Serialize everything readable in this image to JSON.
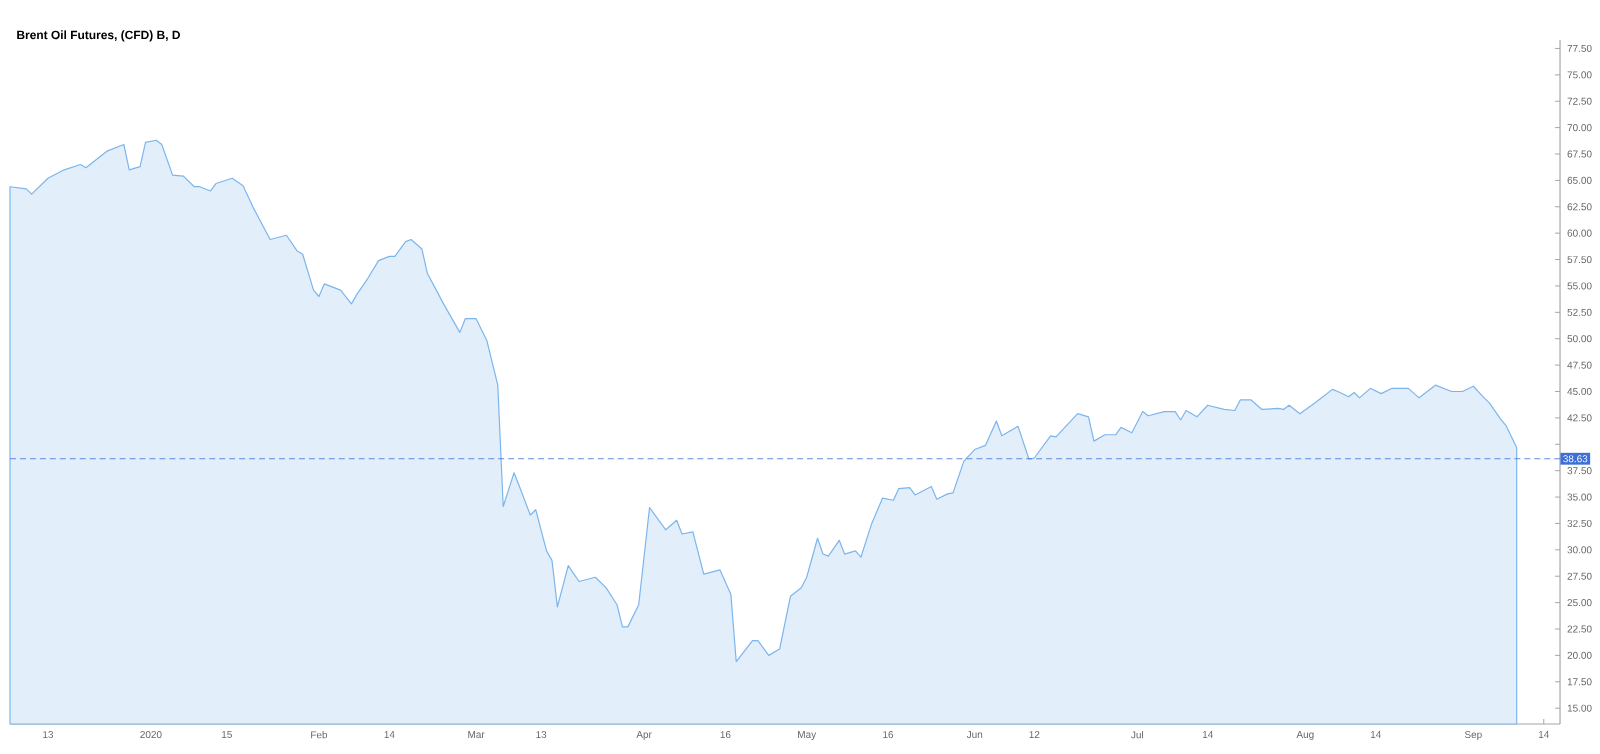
{
  "chart_data": {
    "type": "area",
    "title": "Brent Oil Futures, (CFD) B, D",
    "x": [
      "2019-12-06",
      "2019-12-09",
      "2019-12-10",
      "2019-12-13",
      "2019-12-16",
      "2019-12-19",
      "2019-12-20",
      "2019-12-24",
      "2019-12-27",
      "2019-12-28",
      "2019-12-30",
      "2019-12-31",
      "2020-01-02",
      "2020-01-03",
      "2020-01-05",
      "2020-01-07",
      "2020-01-09",
      "2020-01-10",
      "2020-01-12",
      "2020-01-13",
      "2020-01-16",
      "2020-01-18",
      "2020-01-20",
      "2020-01-23",
      "2020-01-26",
      "2020-01-28",
      "2020-01-29",
      "2020-01-31",
      "2020-02-01",
      "2020-02-02",
      "2020-02-05",
      "2020-02-07",
      "2020-02-08",
      "2020-02-10",
      "2020-02-12",
      "2020-02-14",
      "2020-02-15",
      "2020-02-17",
      "2020-02-18",
      "2020-02-20",
      "2020-02-21",
      "2020-02-24",
      "2020-02-27",
      "2020-02-28",
      "2020-03-01",
      "2020-03-03",
      "2020-03-05",
      "2020-03-06",
      "2020-03-08",
      "2020-03-09",
      "2020-03-11",
      "2020-03-12",
      "2020-03-14",
      "2020-03-15",
      "2020-03-16",
      "2020-03-18",
      "2020-03-20",
      "2020-03-23",
      "2020-03-25",
      "2020-03-27",
      "2020-03-28",
      "2020-03-29",
      "2020-03-31",
      "2020-04-02",
      "2020-04-05",
      "2020-04-07",
      "2020-04-08",
      "2020-04-10",
      "2020-04-12",
      "2020-04-15",
      "2020-04-17",
      "2020-04-18",
      "2020-04-21",
      "2020-04-22",
      "2020-04-24",
      "2020-04-26",
      "2020-04-28",
      "2020-04-30",
      "2020-05-01",
      "2020-05-03",
      "2020-05-04",
      "2020-05-05",
      "2020-05-07",
      "2020-05-08",
      "2020-05-10",
      "2020-05-11",
      "2020-05-13",
      "2020-05-15",
      "2020-05-17",
      "2020-05-18",
      "2020-05-20",
      "2020-05-21",
      "2020-05-24",
      "2020-05-25",
      "2020-05-27",
      "2020-05-28",
      "2020-05-30",
      "2020-06-01",
      "2020-06-03",
      "2020-06-05",
      "2020-06-06",
      "2020-06-09",
      "2020-06-11",
      "2020-06-12",
      "2020-06-15",
      "2020-06-16",
      "2020-06-20",
      "2020-06-22",
      "2020-06-23",
      "2020-06-25",
      "2020-06-27",
      "2020-06-28",
      "2020-06-30",
      "2020-07-02",
      "2020-07-03",
      "2020-07-06",
      "2020-07-08",
      "2020-07-09",
      "2020-07-10",
      "2020-07-12",
      "2020-07-14",
      "2020-07-17",
      "2020-07-19",
      "2020-07-20",
      "2020-07-22",
      "2020-07-24",
      "2020-07-27",
      "2020-07-28",
      "2020-07-29",
      "2020-07-31",
      "2020-08-03",
      "2020-08-04",
      "2020-08-06",
      "2020-08-07",
      "2020-08-09",
      "2020-08-10",
      "2020-08-11",
      "2020-08-13",
      "2020-08-15",
      "2020-08-17",
      "2020-08-20",
      "2020-08-22",
      "2020-08-25",
      "2020-08-28",
      "2020-08-30",
      "2020-09-01",
      "2020-09-03",
      "2020-09-04",
      "2020-09-06",
      "2020-09-07",
      "2020-09-09"
    ],
    "series": [
      {
        "color": "#7cb5ec",
        "values": [
          64.4,
          64.2,
          63.7,
          65.2,
          66.0,
          66.5,
          66.2,
          67.8,
          68.4,
          66.0,
          66.3,
          68.6,
          68.8,
          68.4,
          65.5,
          65.4,
          64.4,
          64.4,
          64.0,
          64.7,
          65.2,
          64.5,
          62.3,
          59.4,
          59.8,
          58.3,
          58.0,
          54.6,
          54.0,
          55.2,
          54.6,
          53.3,
          54.2,
          55.7,
          57.4,
          57.8,
          57.8,
          59.2,
          59.4,
          58.5,
          56.2,
          53.3,
          50.6,
          51.9,
          51.9,
          49.8,
          45.6,
          34.1,
          37.3,
          36.0,
          33.3,
          33.8,
          29.9,
          29.0,
          24.6,
          28.5,
          27.0,
          27.4,
          26.4,
          24.8,
          22.7,
          22.7,
          24.8,
          34.0,
          31.9,
          32.8,
          31.5,
          31.7,
          27.7,
          28.1,
          25.8,
          19.4,
          21.4,
          21.4,
          20.0,
          20.6,
          25.6,
          26.4,
          27.4,
          31.1,
          29.6,
          29.4,
          30.9,
          29.6,
          29.9,
          29.3,
          32.5,
          34.9,
          34.7,
          35.8,
          35.9,
          35.2,
          36.0,
          34.8,
          35.3,
          35.4,
          38.4,
          39.5,
          39.9,
          42.2,
          40.8,
          41.7,
          38.6,
          38.7,
          40.8,
          40.7,
          42.9,
          42.6,
          40.3,
          40.9,
          40.9,
          41.6,
          41.1,
          43.1,
          42.7,
          43.1,
          43.1,
          42.3,
          43.2,
          42.6,
          43.7,
          43.3,
          43.2,
          44.2,
          44.2,
          43.3,
          43.4,
          43.3,
          43.7,
          42.9,
          44.0,
          44.4,
          45.2,
          45.0,
          44.5,
          44.9,
          44.4,
          45.3,
          44.8,
          45.3,
          45.3,
          44.4,
          45.6,
          45.0,
          45.0,
          45.5,
          44.4,
          43.9,
          42.4,
          41.8,
          39.7
        ]
      }
    ],
    "xlim": [
      "2019-12-06",
      "2020-09-17"
    ],
    "xticks": [
      {
        "value": "2019-12-13",
        "label": "13"
      },
      {
        "value": "2020-01-01",
        "label": "2020"
      },
      {
        "value": "2020-01-15",
        "label": "15"
      },
      {
        "value": "2020-02-01",
        "label": "Feb"
      },
      {
        "value": "2020-02-14",
        "label": "14"
      },
      {
        "value": "2020-03-01",
        "label": "Mar"
      },
      {
        "value": "2020-03-13",
        "label": "13"
      },
      {
        "value": "2020-04-01",
        "label": "Apr"
      },
      {
        "value": "2020-04-16",
        "label": "16"
      },
      {
        "value": "2020-05-01",
        "label": "May"
      },
      {
        "value": "2020-05-16",
        "label": "16"
      },
      {
        "value": "2020-06-01",
        "label": "Jun"
      },
      {
        "value": "2020-06-12",
        "label": "12"
      },
      {
        "value": "2020-07-01",
        "label": "Jul"
      },
      {
        "value": "2020-07-14",
        "label": "14"
      },
      {
        "value": "2020-08-01",
        "label": "Aug"
      },
      {
        "value": "2020-08-14",
        "label": "14"
      },
      {
        "value": "2020-09-01",
        "label": "Sep"
      },
      {
        "value": "2020-09-14",
        "label": "14"
      }
    ],
    "ylim": [
      13.5,
      78.3
    ],
    "yticks": [
      {
        "value": 15,
        "label": "15.00"
      },
      {
        "value": 17.5,
        "label": "17.50"
      },
      {
        "value": 20,
        "label": "20.00"
      },
      {
        "value": 22.5,
        "label": "22.50"
      },
      {
        "value": 25,
        "label": "25.00"
      },
      {
        "value": 27.5,
        "label": "27.50"
      },
      {
        "value": 30,
        "label": "30.00"
      },
      {
        "value": 32.5,
        "label": "32.50"
      },
      {
        "value": 35,
        "label": "35.00"
      },
      {
        "value": 37.5,
        "label": "37.50"
      },
      {
        "value": 40,
        "label": null
      },
      {
        "value": 42.5,
        "label": "42.50"
      },
      {
        "value": 45,
        "label": "45.00"
      },
      {
        "value": 47.5,
        "label": "47.50"
      },
      {
        "value": 50,
        "label": "50.00"
      },
      {
        "value": 52.5,
        "label": "52.50"
      },
      {
        "value": 55,
        "label": "55.00"
      },
      {
        "value": 57.5,
        "label": "57.50"
      },
      {
        "value": 60,
        "label": "60.00"
      },
      {
        "value": 62.5,
        "label": "62.50"
      },
      {
        "value": 65,
        "label": "65.00"
      },
      {
        "value": 67.5,
        "label": "67.50"
      },
      {
        "value": 70,
        "label": "70.00"
      },
      {
        "value": 72.5,
        "label": "72.50"
      },
      {
        "value": 75,
        "label": "75.00"
      },
      {
        "value": 77.5,
        "label": "77.50"
      }
    ],
    "ref_lines": [
      {
        "axis": "y",
        "value": 38.63,
        "label": "38.63",
        "color": "#3d6fd6",
        "line_style": "dashed"
      }
    ],
    "grid": false
  }
}
